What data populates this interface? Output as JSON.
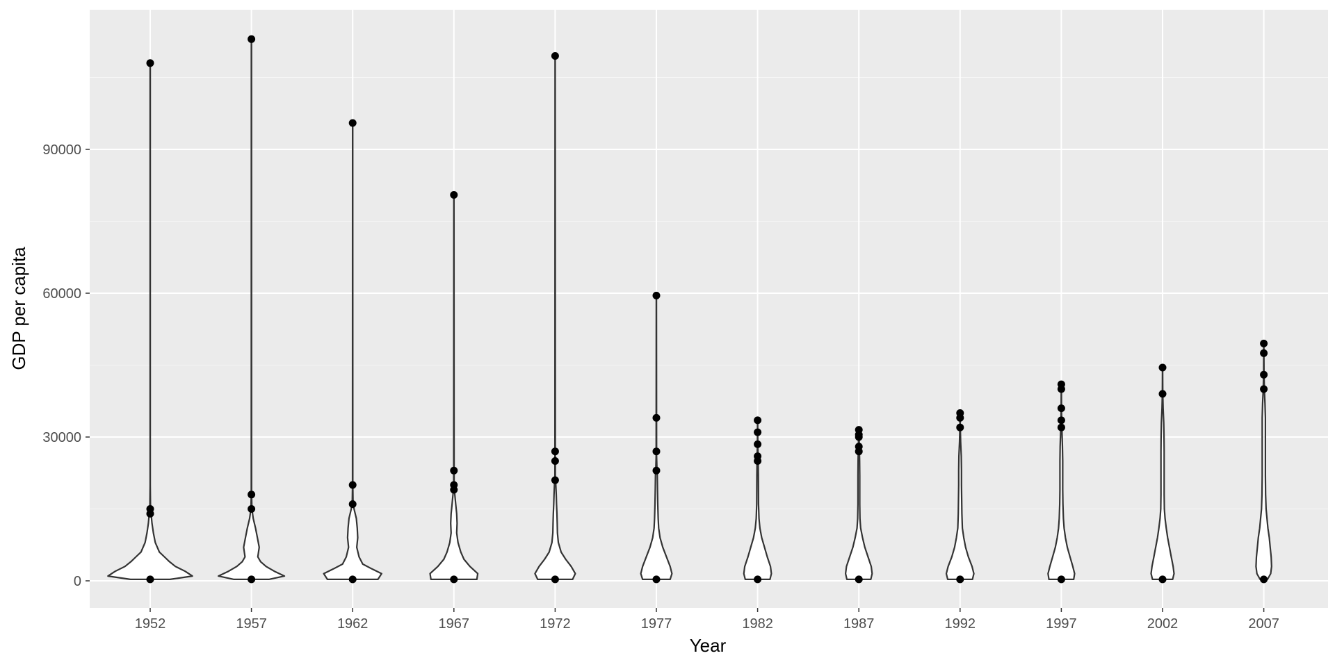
{
  "chart_data": {
    "type": "violin",
    "xlabel": "Year",
    "ylabel": "GDP per capita",
    "ylim": [
      -5000,
      117000
    ],
    "yticks": [
      0,
      30000,
      60000,
      90000
    ],
    "ytick_labels": [
      "0",
      "30000",
      "60000",
      "90000"
    ],
    "grid": true,
    "theme_colors": {
      "panel": "#ebebeb",
      "grid_major": "#ffffff",
      "grid_minor": "#f5f5f5",
      "violin_fill": "#ffffff",
      "violin_outline": "#333333",
      "point": "#000000"
    },
    "categories": [
      "1952",
      "1957",
      "1962",
      "1967",
      "1972",
      "1977",
      "1982",
      "1987",
      "1992",
      "1997",
      "2002",
      "2007"
    ],
    "violins": [
      {
        "year": "1952",
        "min": 300,
        "max": 108000,
        "density": [
          [
            300,
            0.43
          ],
          [
            1000,
            0.92
          ],
          [
            2000,
            0.76
          ],
          [
            3000,
            0.55
          ],
          [
            4000,
            0.42
          ],
          [
            5000,
            0.31
          ],
          [
            6000,
            0.2
          ],
          [
            8000,
            0.11
          ],
          [
            10000,
            0.07
          ],
          [
            12000,
            0.04
          ],
          [
            14000,
            0.02
          ],
          [
            16000,
            0.006
          ],
          [
            20000,
            0.002
          ],
          [
            108000,
            0.002
          ]
        ],
        "outliers": [
          300,
          14000,
          15000,
          108000
        ]
      },
      {
        "year": "1957",
        "min": 300,
        "max": 113000,
        "density": [
          [
            300,
            0.38
          ],
          [
            1000,
            0.72
          ],
          [
            2000,
            0.5
          ],
          [
            3000,
            0.32
          ],
          [
            4000,
            0.2
          ],
          [
            5000,
            0.14
          ],
          [
            7000,
            0.17
          ],
          [
            9000,
            0.13
          ],
          [
            11000,
            0.09
          ],
          [
            13000,
            0.04
          ],
          [
            15000,
            0.01
          ],
          [
            18000,
            0.003
          ],
          [
            113000,
            0.002
          ]
        ],
        "outliers": [
          300,
          15000,
          18000,
          113000
        ]
      },
      {
        "year": "1962",
        "min": 300,
        "max": 95500,
        "density": [
          [
            300,
            0.55
          ],
          [
            1500,
            0.63
          ],
          [
            2500,
            0.42
          ],
          [
            3500,
            0.22
          ],
          [
            5000,
            0.14
          ],
          [
            7000,
            0.09
          ],
          [
            9000,
            0.11
          ],
          [
            11000,
            0.1
          ],
          [
            13000,
            0.08
          ],
          [
            15000,
            0.03
          ],
          [
            17000,
            0.008
          ],
          [
            20000,
            0.003
          ],
          [
            95500,
            0.002
          ]
        ],
        "outliers": [
          300,
          16000,
          20000,
          95500
        ]
      },
      {
        "year": "1967",
        "min": 300,
        "max": 80500,
        "density": [
          [
            300,
            0.5
          ],
          [
            1500,
            0.52
          ],
          [
            3000,
            0.35
          ],
          [
            4500,
            0.22
          ],
          [
            6000,
            0.15
          ],
          [
            8000,
            0.09
          ],
          [
            10000,
            0.06
          ],
          [
            12000,
            0.07
          ],
          [
            14000,
            0.06
          ],
          [
            16000,
            0.04
          ],
          [
            18000,
            0.02
          ],
          [
            20000,
            0.005
          ],
          [
            80500,
            0.002
          ]
        ],
        "outliers": [
          300,
          19000,
          20000,
          23000,
          80500
        ]
      },
      {
        "year": "1972",
        "min": 300,
        "max": 109500,
        "density": [
          [
            300,
            0.38
          ],
          [
            1500,
            0.44
          ],
          [
            3000,
            0.35
          ],
          [
            4500,
            0.23
          ],
          [
            6000,
            0.13
          ],
          [
            8000,
            0.07
          ],
          [
            10000,
            0.05
          ],
          [
            12000,
            0.045
          ],
          [
            14000,
            0.04
          ],
          [
            16000,
            0.03
          ],
          [
            18000,
            0.025
          ],
          [
            20000,
            0.015
          ],
          [
            22000,
            0.005
          ],
          [
            109500,
            0.002
          ]
        ],
        "outliers": [
          300,
          21000,
          25000,
          27000,
          109500
        ]
      },
      {
        "year": "1977",
        "min": 300,
        "max": 59500,
        "density": [
          [
            300,
            0.3
          ],
          [
            1500,
            0.34
          ],
          [
            3000,
            0.3
          ],
          [
            5000,
            0.22
          ],
          [
            7000,
            0.14
          ],
          [
            9000,
            0.08
          ],
          [
            11000,
            0.05
          ],
          [
            13000,
            0.04
          ],
          [
            16000,
            0.03
          ],
          [
            19000,
            0.025
          ],
          [
            22000,
            0.02
          ],
          [
            24000,
            0.01
          ],
          [
            26000,
            0.005
          ],
          [
            59500,
            0.002
          ]
        ],
        "outliers": [
          300,
          23000,
          27000,
          34000,
          59500
        ]
      },
      {
        "year": "1982",
        "min": 300,
        "max": 33500,
        "density": [
          [
            300,
            0.27
          ],
          [
            1500,
            0.3
          ],
          [
            3000,
            0.28
          ],
          [
            5000,
            0.21
          ],
          [
            7000,
            0.15
          ],
          [
            9000,
            0.09
          ],
          [
            11000,
            0.05
          ],
          [
            13000,
            0.03
          ],
          [
            16000,
            0.02
          ],
          [
            19000,
            0.018
          ],
          [
            22000,
            0.016
          ],
          [
            25000,
            0.012
          ],
          [
            27000,
            0.007
          ],
          [
            30000,
            0.003
          ],
          [
            33500,
            0.002
          ]
        ],
        "outliers": [
          300,
          25000,
          26000,
          28500,
          31000,
          33500
        ]
      },
      {
        "year": "1987",
        "min": 300,
        "max": 31500,
        "density": [
          [
            300,
            0.26
          ],
          [
            1500,
            0.29
          ],
          [
            3000,
            0.27
          ],
          [
            5000,
            0.2
          ],
          [
            7000,
            0.13
          ],
          [
            9000,
            0.08
          ],
          [
            11000,
            0.04
          ],
          [
            13000,
            0.025
          ],
          [
            16000,
            0.02
          ],
          [
            19000,
            0.02
          ],
          [
            22000,
            0.02
          ],
          [
            25000,
            0.017
          ],
          [
            28000,
            0.01
          ],
          [
            31500,
            0.002
          ]
        ],
        "outliers": [
          300,
          27000,
          28000,
          30000,
          30500,
          31500
        ]
      },
      {
        "year": "1992",
        "min": 300,
        "max": 35000,
        "density": [
          [
            300,
            0.27
          ],
          [
            1500,
            0.3
          ],
          [
            3000,
            0.26
          ],
          [
            5000,
            0.18
          ],
          [
            7000,
            0.12
          ],
          [
            9000,
            0.08
          ],
          [
            11000,
            0.05
          ],
          [
            14000,
            0.04
          ],
          [
            17000,
            0.035
          ],
          [
            20000,
            0.03
          ],
          [
            23000,
            0.03
          ],
          [
            26000,
            0.025
          ],
          [
            29000,
            0.012
          ],
          [
            32000,
            0.005
          ],
          [
            35000,
            0.002
          ]
        ],
        "outliers": [
          300,
          32000,
          34000,
          35000
        ]
      },
      {
        "year": "1997",
        "min": 300,
        "max": 41000,
        "density": [
          [
            300,
            0.27
          ],
          [
            1500,
            0.29
          ],
          [
            3000,
            0.25
          ],
          [
            5000,
            0.19
          ],
          [
            7000,
            0.13
          ],
          [
            9000,
            0.09
          ],
          [
            11000,
            0.06
          ],
          [
            13000,
            0.045
          ],
          [
            16000,
            0.035
          ],
          [
            19000,
            0.03
          ],
          [
            22000,
            0.03
          ],
          [
            25000,
            0.03
          ],
          [
            28000,
            0.025
          ],
          [
            31000,
            0.015
          ],
          [
            34000,
            0.006
          ],
          [
            37000,
            0.003
          ],
          [
            41000,
            0.002
          ]
        ],
        "outliers": [
          300,
          32000,
          33500,
          36000,
          40000,
          41000
        ]
      },
      {
        "year": "2002",
        "min": 300,
        "max": 44500,
        "density": [
          [
            300,
            0.22
          ],
          [
            1500,
            0.25
          ],
          [
            3000,
            0.23
          ],
          [
            5000,
            0.19
          ],
          [
            7000,
            0.15
          ],
          [
            9000,
            0.11
          ],
          [
            11000,
            0.08
          ],
          [
            13000,
            0.055
          ],
          [
            15000,
            0.04
          ],
          [
            18000,
            0.035
          ],
          [
            21000,
            0.035
          ],
          [
            24000,
            0.035
          ],
          [
            27000,
            0.035
          ],
          [
            30000,
            0.032
          ],
          [
            33000,
            0.025
          ],
          [
            36000,
            0.012
          ],
          [
            39000,
            0.005
          ],
          [
            44500,
            0.002
          ]
        ],
        "outliers": [
          300,
          39000,
          44500
        ]
      },
      {
        "year": "2007",
        "min": 300,
        "max": 49500,
        "density": [
          [
            300,
            0.08
          ],
          [
            1500,
            0.15
          ],
          [
            3000,
            0.17
          ],
          [
            5000,
            0.16
          ],
          [
            7000,
            0.14
          ],
          [
            9000,
            0.12
          ],
          [
            11000,
            0.09
          ],
          [
            13000,
            0.07
          ],
          [
            15000,
            0.05
          ],
          [
            18000,
            0.04
          ],
          [
            22000,
            0.035
          ],
          [
            26000,
            0.035
          ],
          [
            30000,
            0.035
          ],
          [
            34000,
            0.035
          ],
          [
            37000,
            0.025
          ],
          [
            40000,
            0.012
          ],
          [
            43000,
            0.005
          ],
          [
            49500,
            0.002
          ]
        ],
        "outliers": [
          300,
          40000,
          43000,
          47500,
          49500
        ]
      }
    ]
  }
}
